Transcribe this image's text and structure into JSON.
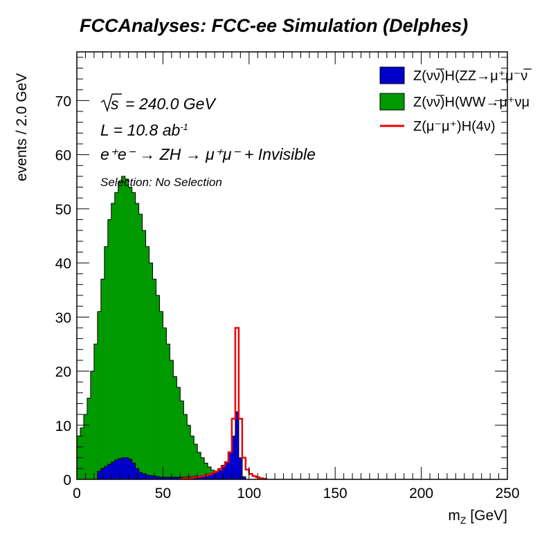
{
  "chart_data": {
    "type": "histogram",
    "title": "FCCAnalyses: FCC-ee Simulation (Delphes)",
    "xlabel": "m_Z [GeV]",
    "ylabel": "events / 2.0 GeV",
    "xlim": [
      0,
      250
    ],
    "ylim": [
      0,
      79
    ],
    "bin_width": 2.0,
    "x_ticks": [
      0,
      50,
      100,
      150,
      200,
      250
    ],
    "y_ticks": [
      0,
      10,
      20,
      30,
      40,
      50,
      60,
      70
    ],
    "annotations": {
      "sqrt_s": "= 240.0 GeV",
      "lumi": "L = 10.8 ab",
      "lumi_exp": "-1",
      "process": "e⁺e⁻ → ZH → μ⁺μ⁻ + Invisible",
      "selection": "Selection: No Selection"
    },
    "legend_position": "top-right",
    "series": [
      {
        "name": "Z(νν̅)H(WW→μ⁺νμ",
        "color": "#009900",
        "style": "stacked-fill",
        "x": [
          0,
          2,
          4,
          6,
          8,
          10,
          12,
          14,
          16,
          18,
          20,
          22,
          24,
          26,
          28,
          30,
          32,
          34,
          36,
          38,
          40,
          42,
          44,
          46,
          48,
          50,
          52,
          54,
          56,
          58,
          60,
          62,
          64,
          66,
          68,
          70,
          72,
          74,
          76,
          78,
          80,
          82,
          84,
          86,
          88,
          90
        ],
        "values": [
          8,
          9.5,
          12,
          15,
          20,
          25,
          31,
          37,
          43,
          48,
          51,
          53,
          55,
          56,
          55.5,
          54,
          53,
          51,
          49,
          46,
          43,
          40,
          37,
          34,
          31,
          28,
          25,
          22,
          19,
          17,
          14.5,
          12,
          10,
          8,
          6.5,
          5,
          4,
          3,
          2.3,
          1.7,
          1.2,
          0.9,
          0.6,
          0.4,
          0.3,
          0.2
        ]
      },
      {
        "name": "Z(νν̅)H(ZZ→μ⁺μ⁻ν̅",
        "color": "#0000cc",
        "style": "fill",
        "x": [
          12,
          14,
          16,
          18,
          20,
          22,
          24,
          26,
          28,
          30,
          32,
          34,
          36,
          38,
          40,
          42,
          44,
          46,
          48,
          50,
          52,
          54,
          56,
          58,
          60,
          62,
          64,
          66,
          68,
          70,
          72,
          74,
          76,
          78,
          80,
          82,
          84,
          86,
          88,
          90,
          92,
          94,
          96
        ],
        "values": [
          1.5,
          2,
          2.4,
          2.8,
          3.2,
          3.6,
          3.8,
          4,
          4,
          3.7,
          3,
          2,
          1.3,
          1,
          0.8,
          0.7,
          0.6,
          0.5,
          0.4,
          0.4,
          0.4,
          0.4,
          0.4,
          0.4,
          0.4,
          0.4,
          0.5,
          0.5,
          0.6,
          0.6,
          0.7,
          0.8,
          1,
          1.2,
          1.5,
          2,
          2.6,
          3.2,
          5,
          8,
          12.5,
          4,
          0.5
        ]
      },
      {
        "name": "Z(μ⁻μ⁺)H(4ν)",
        "color": "#ee0000",
        "style": "step-line",
        "x": [
          60,
          62,
          64,
          66,
          68,
          70,
          72,
          74,
          76,
          78,
          80,
          82,
          84,
          86,
          88,
          90,
          92,
          94,
          96,
          98,
          100,
          102,
          104,
          106,
          108
        ],
        "values": [
          0.1,
          0.2,
          0.2,
          0.3,
          0.4,
          0.5,
          0.6,
          0.7,
          0.9,
          1.1,
          1.4,
          1.8,
          2.4,
          3.2,
          5,
          11.2,
          28,
          11.2,
          4,
          1.8,
          1,
          0.6,
          0.4,
          0.2,
          0.1
        ]
      }
    ]
  }
}
